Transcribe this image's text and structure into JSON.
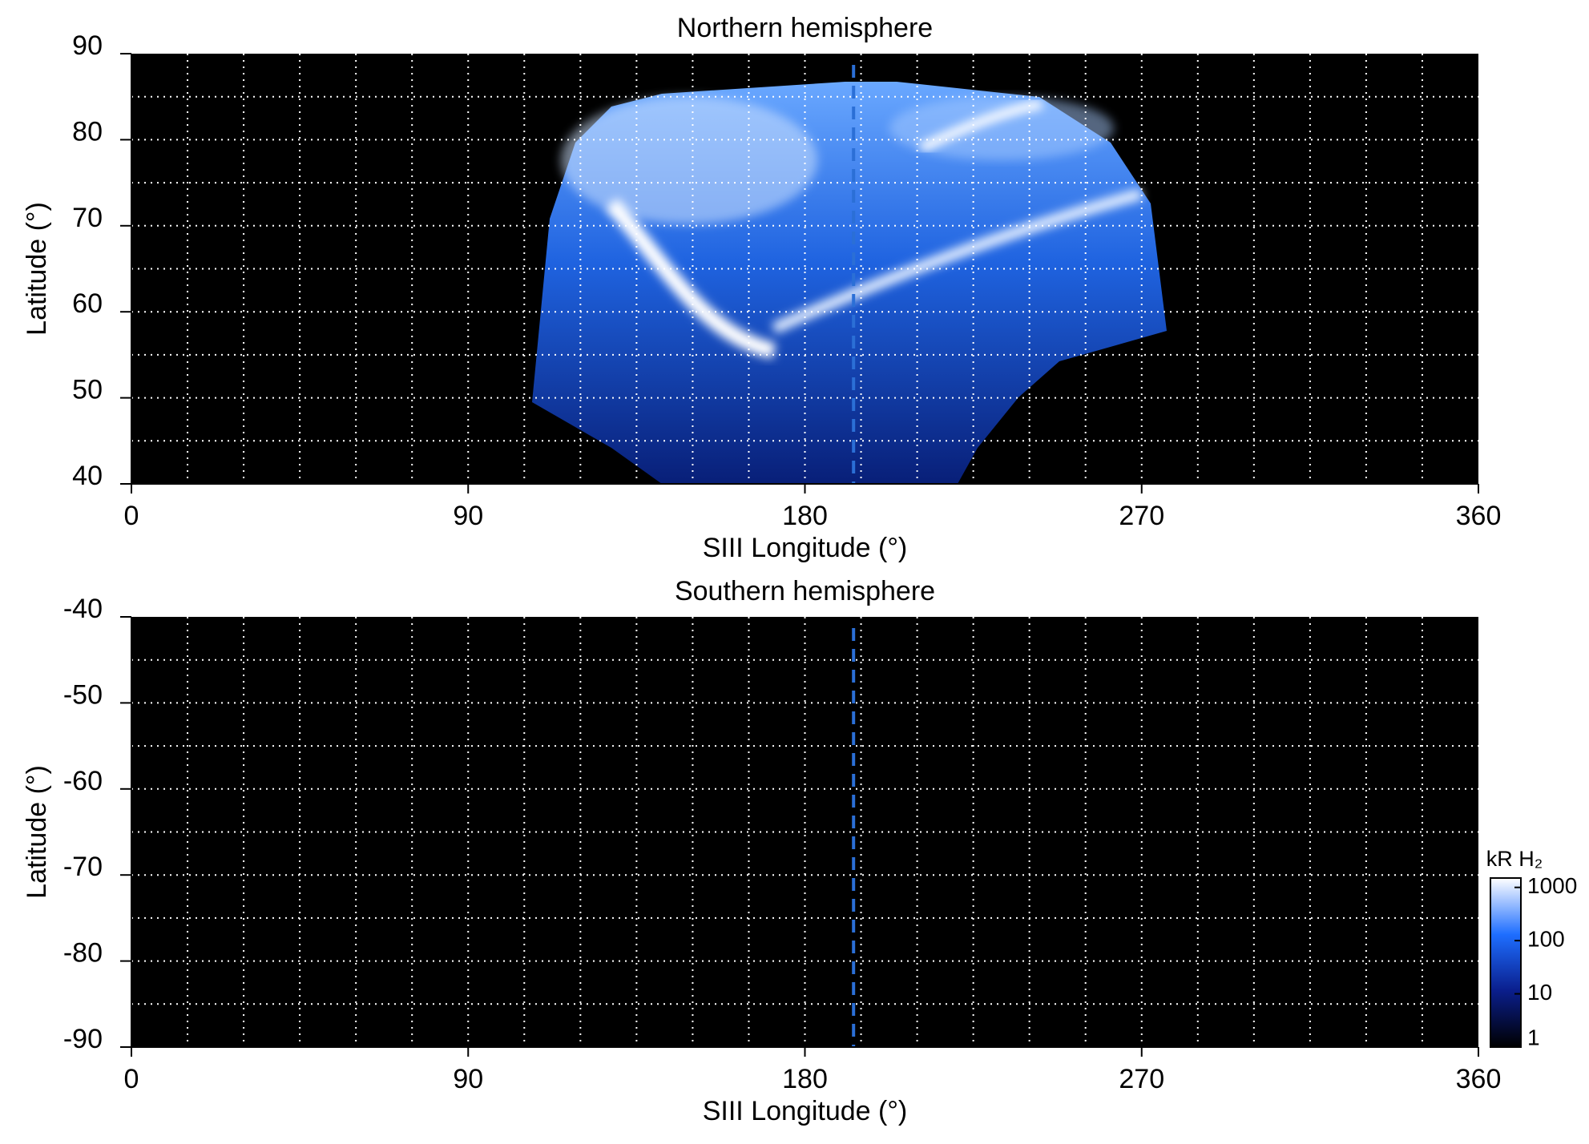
{
  "chart_data": [
    {
      "type": "heatmap",
      "title": "Northern hemisphere",
      "x_label": "SIII Longitude (°)",
      "y_label": "Latitude (°)",
      "xlim": [
        0,
        360
      ],
      "ylim": [
        40,
        90
      ],
      "xticks": [
        0,
        90,
        180,
        270,
        360
      ],
      "yticks": [
        40,
        50,
        60,
        70,
        80,
        90
      ],
      "xgrid": [
        15,
        30,
        45,
        60,
        75,
        90,
        105,
        120,
        135,
        150,
        165,
        180,
        195,
        210,
        225,
        240,
        255,
        270,
        285,
        300,
        315,
        330,
        345
      ],
      "ygrid": [
        45,
        50,
        55,
        60,
        65,
        70,
        75,
        80,
        85
      ],
      "reference_line_x": 193,
      "reference_color": "#2b6fd6",
      "background": "#000000",
      "grid_color": "#ffffff"
    },
    {
      "type": "heatmap",
      "title": "Southern hemisphere",
      "x_label": "SIII Longitude (°)",
      "y_label": "Latitude (°)",
      "xlim": [
        0,
        360
      ],
      "ylim": [
        -90,
        -40
      ],
      "xticks": [
        0,
        90,
        180,
        270,
        360
      ],
      "yticks": [
        -90,
        -80,
        -70,
        -60,
        -50,
        -40
      ],
      "xgrid": [
        15,
        30,
        45,
        60,
        75,
        90,
        105,
        120,
        135,
        150,
        165,
        180,
        195,
        210,
        225,
        240,
        255,
        270,
        285,
        300,
        315,
        330,
        345
      ],
      "ygrid": [
        -85,
        -80,
        -75,
        -70,
        -65,
        -60,
        -55,
        -50,
        -45
      ],
      "reference_line_x": 193,
      "reference_color": "#2b6fd6",
      "background": "#000000",
      "grid_color": "#ffffff",
      "colorbar": {
        "label": "kR H₂",
        "lim": [
          1,
          1500
        ],
        "ticks": [
          1,
          10,
          100,
          1000
        ],
        "log": true,
        "colormap": [
          "#000000",
          "#0a1e8c",
          "#1e6eff",
          "#ffffff"
        ]
      }
    }
  ]
}
